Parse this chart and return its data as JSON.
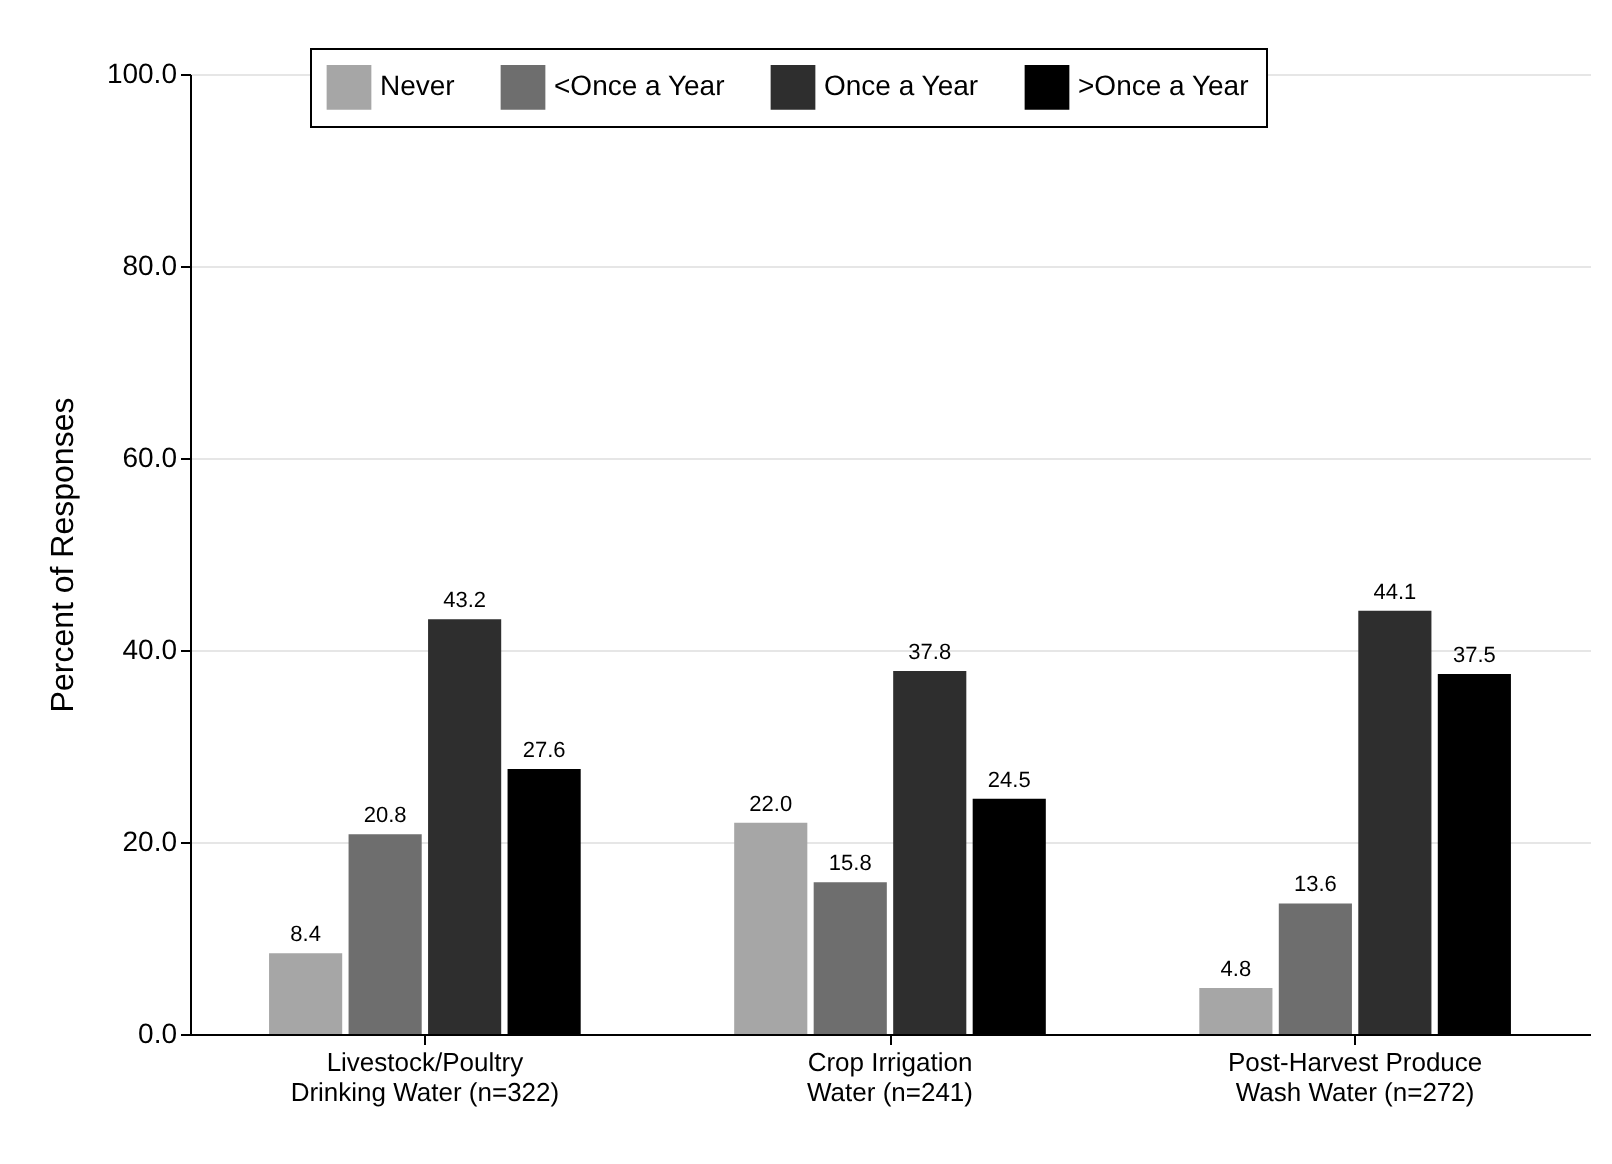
{
  "chart_data": {
    "type": "bar",
    "ylabel": "Percent of Responses",
    "categories": [
      "Livestock/Poultry Drinking Water (n=322)",
      "Crop Irrigation Water (n=241)",
      "Post-Harvest Produce Wash Water (n=272)"
    ],
    "series": [
      {
        "name": "Never",
        "color": "#a6a6a6",
        "values": [
          8.4,
          22.0,
          4.8
        ],
        "value_labels": [
          "8.4",
          "22.0",
          "4.8"
        ]
      },
      {
        "name": "<Once a Year",
        "color": "#6e6e6e",
        "values": [
          20.8,
          15.8,
          13.6
        ],
        "value_labels": [
          "20.8",
          "15.8",
          "13.6"
        ]
      },
      {
        "name": "Once a Year",
        "color": "#2e2e2e",
        "values": [
          43.2,
          37.8,
          44.1
        ],
        "value_labels": [
          "43.2",
          "37.8",
          "44.1"
        ]
      },
      {
        "name": ">Once a Year",
        "color": "#000000",
        "values": [
          27.6,
          24.5,
          37.5
        ],
        "value_labels": [
          "27.6",
          "24.5",
          "37.5"
        ]
      }
    ],
    "ylim": [
      0,
      100
    ],
    "yticks": [
      {
        "value": 0,
        "label": "0.0"
      },
      {
        "value": 20,
        "label": "20.0"
      },
      {
        "value": 40,
        "label": "40.0"
      },
      {
        "value": 60,
        "label": "60.0"
      },
      {
        "value": 80,
        "label": "80.0"
      },
      {
        "value": 100,
        "label": "100.0"
      }
    ],
    "grid": "y",
    "legend": "top"
  }
}
